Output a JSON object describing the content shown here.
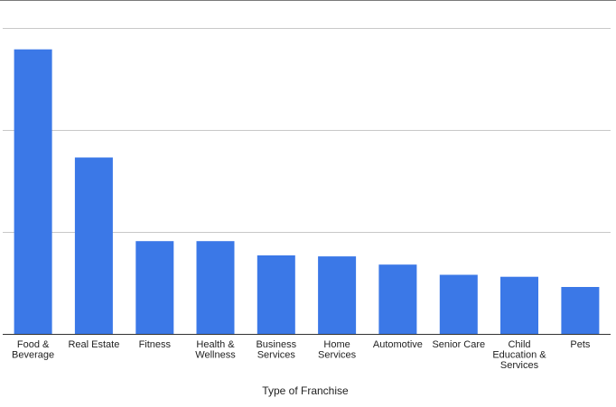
{
  "chart_data": {
    "type": "bar",
    "title": "",
    "xlabel": "Type of Franchise",
    "ylabel": "",
    "categories": [
      [
        "Food &",
        "Beverage"
      ],
      [
        "Real Estate"
      ],
      [
        "Fitness"
      ],
      [
        "Health &",
        "Wellness"
      ],
      [
        "Business",
        "Services"
      ],
      [
        "Home",
        "Services"
      ],
      [
        "Automotive"
      ],
      [
        "Senior Care"
      ],
      [
        "Child",
        "Education &",
        "Services"
      ],
      [
        "Pets"
      ]
    ],
    "values": [
      2.79,
      1.73,
      0.91,
      0.91,
      0.77,
      0.76,
      0.68,
      0.58,
      0.56,
      0.46
    ],
    "ylim": [
      0,
      3.0
    ],
    "ytick_count": 3,
    "grid": true,
    "legend": "none",
    "bar_color": "#3b78e7",
    "grid_color": "#c8c8c8",
    "axis_color": "#333333"
  }
}
